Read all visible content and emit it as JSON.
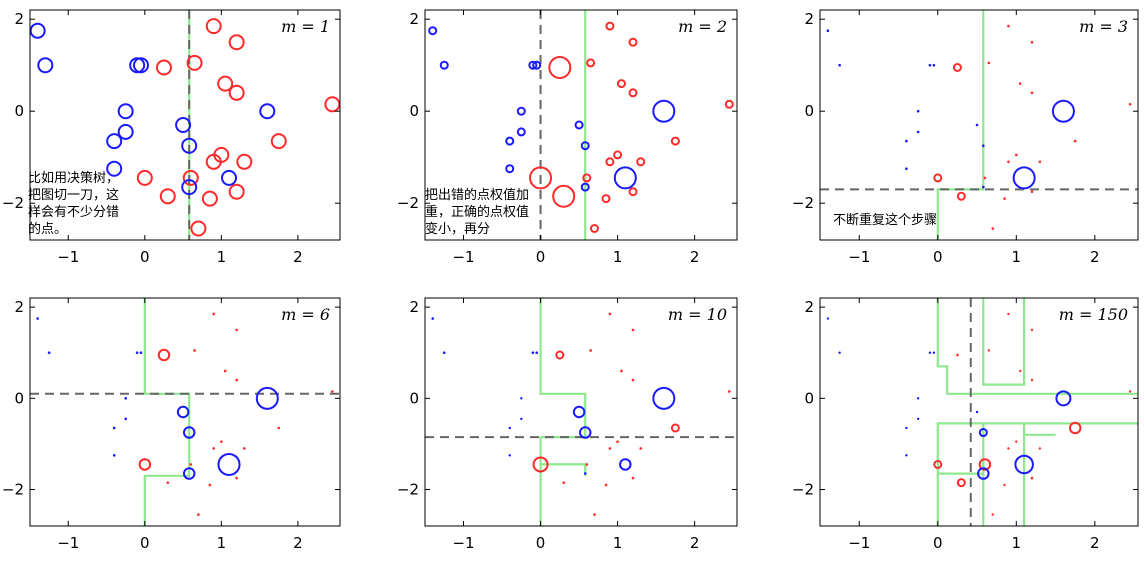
{
  "colors": {
    "class_pos": "#ff2a2a",
    "class_neg": "#1a1aff",
    "boundary": "#8ee88e",
    "weak_split": "#666666"
  },
  "notes": {
    "panel1": "比如用决策树，\n把图切一刀，这\n样会有不少分错\n的点。",
    "panel2": "把出错的点权值加\n重，正确的点权值\n变小，再分",
    "panel3": "不断重复这个步骤"
  },
  "chart_data": [
    {
      "type": "scatter",
      "title": "m = 1",
      "xlim": [
        -1.5,
        2.55
      ],
      "ylim": [
        -2.8,
        2.2
      ],
      "xticks": [
        -1,
        0,
        1,
        2
      ],
      "yticks": [
        -2,
        0,
        2
      ],
      "points_neg": [
        [
          -1.4,
          1.75,
          2
        ],
        [
          -1.3,
          1.0,
          2
        ],
        [
          -0.1,
          1.0,
          2
        ],
        [
          -0.05,
          1.0,
          2
        ],
        [
          -0.25,
          0.0,
          2
        ],
        [
          -0.25,
          -0.45,
          2
        ],
        [
          -0.4,
          -0.65,
          2
        ],
        [
          -0.4,
          -1.25,
          2
        ],
        [
          0.5,
          -0.3,
          2
        ],
        [
          0.58,
          -0.75,
          2
        ],
        [
          1.6,
          0.0,
          2
        ],
        [
          0.58,
          -1.65,
          2
        ],
        [
          1.1,
          -1.45,
          2
        ]
      ],
      "points_pos": [
        [
          0.9,
          1.85,
          2
        ],
        [
          1.2,
          1.5,
          2
        ],
        [
          0.25,
          0.95,
          2
        ],
        [
          0.65,
          1.05,
          2
        ],
        [
          1.05,
          0.6,
          2
        ],
        [
          1.2,
          0.4,
          2
        ],
        [
          2.45,
          0.15,
          2
        ],
        [
          1.75,
          -0.65,
          2
        ],
        [
          1.0,
          -0.95,
          2
        ],
        [
          0.9,
          -1.1,
          2
        ],
        [
          1.3,
          -1.1,
          2
        ],
        [
          0.0,
          -1.45,
          2
        ],
        [
          0.6,
          -1.45,
          2
        ],
        [
          1.2,
          -1.75,
          2
        ],
        [
          0.3,
          -1.85,
          2
        ],
        [
          0.85,
          -1.9,
          2
        ],
        [
          0.7,
          -2.55,
          2
        ]
      ],
      "splits": [
        {
          "orient": "v",
          "value": 0.58
        }
      ],
      "boundary": [
        [
          [
            0.58,
            2.2
          ],
          [
            0.58,
            -2.8
          ]
        ]
      ]
    },
    {
      "type": "scatter",
      "title": "m = 2",
      "xlim": [
        -1.5,
        2.55
      ],
      "ylim": [
        -2.8,
        2.2
      ],
      "xticks": [
        -1,
        0,
        1,
        2
      ],
      "yticks": [
        -2,
        0,
        2
      ],
      "points_neg": [
        [
          -1.4,
          1.75,
          1
        ],
        [
          -1.25,
          1.0,
          1
        ],
        [
          -0.1,
          1.0,
          1
        ],
        [
          -0.05,
          1.0,
          1
        ],
        [
          -0.25,
          0.0,
          1
        ],
        [
          -0.25,
          -0.45,
          1
        ],
        [
          -0.4,
          -0.65,
          1
        ],
        [
          -0.4,
          -1.25,
          1
        ],
        [
          0.5,
          -0.3,
          1
        ],
        [
          0.58,
          -0.75,
          1
        ],
        [
          1.6,
          0.0,
          3
        ],
        [
          0.58,
          -1.65,
          1
        ],
        [
          1.1,
          -1.45,
          3
        ]
      ],
      "points_pos": [
        [
          0.9,
          1.85,
          1
        ],
        [
          1.2,
          1.5,
          1
        ],
        [
          0.25,
          0.95,
          3
        ],
        [
          0.65,
          1.05,
          1
        ],
        [
          1.05,
          0.6,
          1
        ],
        [
          1.2,
          0.4,
          1
        ],
        [
          2.45,
          0.15,
          1
        ],
        [
          1.75,
          -0.65,
          1
        ],
        [
          1.0,
          -0.95,
          1
        ],
        [
          0.9,
          -1.1,
          1
        ],
        [
          1.3,
          -1.1,
          1
        ],
        [
          0.0,
          -1.45,
          3
        ],
        [
          0.6,
          -1.45,
          1
        ],
        [
          1.2,
          -1.75,
          1
        ],
        [
          0.3,
          -1.85,
          3
        ],
        [
          0.85,
          -1.9,
          1
        ],
        [
          0.7,
          -2.55,
          1
        ]
      ],
      "splits": [
        {
          "orient": "v",
          "value": 0.0
        }
      ],
      "boundary": [
        [
          [
            0.58,
            2.2
          ],
          [
            0.58,
            -2.8
          ]
        ]
      ]
    },
    {
      "type": "scatter",
      "title": "m = 3",
      "xlim": [
        -1.5,
        2.55
      ],
      "ylim": [
        -2.8,
        2.2
      ],
      "xticks": [
        -1,
        0,
        1,
        2
      ],
      "yticks": [
        -2,
        0,
        2
      ],
      "points_neg": [
        [
          -1.4,
          1.75,
          0.5
        ],
        [
          -1.25,
          1.0,
          0.5
        ],
        [
          -0.1,
          1.0,
          0.5
        ],
        [
          -0.05,
          1.0,
          0.5
        ],
        [
          -0.25,
          0.0,
          0.5
        ],
        [
          -0.25,
          -0.45,
          0.5
        ],
        [
          -0.4,
          -0.65,
          0.5
        ],
        [
          -0.4,
          -1.25,
          0.5
        ],
        [
          0.5,
          -0.3,
          0.5
        ],
        [
          0.58,
          -0.75,
          0.5
        ],
        [
          1.6,
          0.0,
          3
        ],
        [
          0.58,
          -1.65,
          0.5
        ],
        [
          1.1,
          -1.45,
          3
        ]
      ],
      "points_pos": [
        [
          0.9,
          1.85,
          0.5
        ],
        [
          1.2,
          1.5,
          0.5
        ],
        [
          0.25,
          0.95,
          1
        ],
        [
          0.65,
          1.05,
          0.5
        ],
        [
          1.05,
          0.6,
          0.5
        ],
        [
          1.2,
          0.4,
          0.5
        ],
        [
          2.45,
          0.15,
          0.5
        ],
        [
          1.75,
          -0.65,
          0.5
        ],
        [
          1.0,
          -0.95,
          0.5
        ],
        [
          0.9,
          -1.1,
          0.5
        ],
        [
          1.3,
          -1.1,
          0.5
        ],
        [
          0.0,
          -1.45,
          1
        ],
        [
          0.6,
          -1.45,
          0.5
        ],
        [
          1.2,
          -1.75,
          0.5
        ],
        [
          0.3,
          -1.85,
          1
        ],
        [
          0.85,
          -1.9,
          0.5
        ],
        [
          0.7,
          -2.55,
          0.5
        ]
      ],
      "splits": [
        {
          "orient": "h",
          "value": -1.7
        }
      ],
      "boundary": [
        [
          [
            0.58,
            2.2
          ],
          [
            0.58,
            -1.7
          ],
          [
            0.0,
            -1.7
          ],
          [
            0.0,
            -2.8
          ]
        ]
      ]
    },
    {
      "type": "scatter",
      "title": "m = 6",
      "xlim": [
        -1.5,
        2.55
      ],
      "ylim": [
        -2.8,
        2.2
      ],
      "xticks": [
        -1,
        0,
        1,
        2
      ],
      "yticks": [
        -2,
        0,
        2
      ],
      "points_neg": [
        [
          -1.4,
          1.75,
          0.5
        ],
        [
          -1.25,
          1.0,
          0.5
        ],
        [
          -0.1,
          1.0,
          0.5
        ],
        [
          -0.05,
          1.0,
          0.5
        ],
        [
          -0.25,
          0.0,
          0.5
        ],
        [
          -0.25,
          -0.45,
          0.5
        ],
        [
          -0.4,
          -0.65,
          0.5
        ],
        [
          -0.4,
          -1.25,
          0.5
        ],
        [
          0.5,
          -0.3,
          1.5
        ],
        [
          0.58,
          -0.75,
          1.5
        ],
        [
          1.6,
          0.0,
          3
        ],
        [
          0.58,
          -1.65,
          1.5
        ],
        [
          1.1,
          -1.45,
          3
        ]
      ],
      "points_pos": [
        [
          0.9,
          1.85,
          0.5
        ],
        [
          1.2,
          1.5,
          0.5
        ],
        [
          0.25,
          0.95,
          1.5
        ],
        [
          0.65,
          1.05,
          0.5
        ],
        [
          1.05,
          0.6,
          0.5
        ],
        [
          1.2,
          0.4,
          0.5
        ],
        [
          2.45,
          0.15,
          0.5
        ],
        [
          1.75,
          -0.65,
          0.5
        ],
        [
          1.0,
          -0.95,
          0.5
        ],
        [
          0.9,
          -1.1,
          0.5
        ],
        [
          1.3,
          -1.1,
          0.5
        ],
        [
          0.0,
          -1.45,
          1.5
        ],
        [
          0.6,
          -1.45,
          0.5
        ],
        [
          1.2,
          -1.75,
          0.5
        ],
        [
          0.3,
          -1.85,
          0.5
        ],
        [
          0.85,
          -1.9,
          0.5
        ],
        [
          0.7,
          -2.55,
          0.5
        ]
      ],
      "splits": [
        {
          "orient": "h",
          "value": 0.1
        }
      ],
      "boundary": [
        [
          [
            0.0,
            2.2
          ],
          [
            0.0,
            0.1
          ],
          [
            0.58,
            0.1
          ],
          [
            0.58,
            -1.7
          ],
          [
            0.0,
            -1.7
          ],
          [
            0.0,
            -2.8
          ]
        ]
      ]
    },
    {
      "type": "scatter",
      "title": "m = 10",
      "xlim": [
        -1.5,
        2.55
      ],
      "ylim": [
        -2.8,
        2.2
      ],
      "xticks": [
        -1,
        0,
        1,
        2
      ],
      "yticks": [
        -2,
        0,
        2
      ],
      "points_neg": [
        [
          -1.4,
          1.75,
          0.5
        ],
        [
          -1.25,
          1.0,
          0.5
        ],
        [
          -0.1,
          1.0,
          0.5
        ],
        [
          -0.05,
          1.0,
          0.5
        ],
        [
          -0.25,
          0.0,
          0.3
        ],
        [
          -0.25,
          -0.45,
          0.3
        ],
        [
          -0.4,
          -0.65,
          0.3
        ],
        [
          -0.4,
          -1.25,
          0.3
        ],
        [
          0.5,
          -0.3,
          1.5
        ],
        [
          0.58,
          -0.75,
          1.5
        ],
        [
          1.6,
          0.0,
          3
        ],
        [
          0.58,
          -1.65,
          0.5
        ],
        [
          1.1,
          -1.45,
          1.5
        ]
      ],
      "points_pos": [
        [
          0.9,
          1.85,
          0.5
        ],
        [
          1.2,
          1.5,
          0.5
        ],
        [
          0.25,
          0.95,
          1
        ],
        [
          0.65,
          1.05,
          0.5
        ],
        [
          1.05,
          0.6,
          0.5
        ],
        [
          1.2,
          0.4,
          0.5
        ],
        [
          2.45,
          0.15,
          0.5
        ],
        [
          1.75,
          -0.65,
          1
        ],
        [
          1.0,
          -0.95,
          0.5
        ],
        [
          0.9,
          -1.1,
          0.5
        ],
        [
          1.3,
          -1.1,
          0.5
        ],
        [
          0.0,
          -1.45,
          2
        ],
        [
          0.6,
          -1.45,
          0.5
        ],
        [
          1.2,
          -1.75,
          0.5
        ],
        [
          0.3,
          -1.85,
          0.5
        ],
        [
          0.85,
          -1.9,
          0.5
        ],
        [
          0.7,
          -2.55,
          0.5
        ]
      ],
      "splits": [
        {
          "orient": "h",
          "value": -0.85
        }
      ],
      "boundary": [
        [
          [
            0.0,
            2.2
          ],
          [
            0.0,
            0.1
          ],
          [
            0.58,
            0.1
          ],
          [
            0.58,
            -0.85
          ],
          [
            0.0,
            -0.85
          ],
          [
            0.0,
            -2.8
          ]
        ],
        [
          [
            0.0,
            -1.45
          ],
          [
            0.58,
            -1.45
          ],
          [
            0.58,
            -1.7
          ]
        ]
      ]
    },
    {
      "type": "scatter",
      "title": "m = 150",
      "xlim": [
        -1.5,
        2.55
      ],
      "ylim": [
        -2.8,
        2.2
      ],
      "xticks": [
        -1,
        0,
        1,
        2
      ],
      "yticks": [
        -2,
        0,
        2
      ],
      "points_neg": [
        [
          -1.4,
          1.75,
          0.3
        ],
        [
          -1.25,
          1.0,
          0.3
        ],
        [
          -0.1,
          1.0,
          0.3
        ],
        [
          -0.05,
          1.0,
          0.3
        ],
        [
          -0.25,
          0.0,
          0.3
        ],
        [
          -0.25,
          -0.45,
          0.3
        ],
        [
          -0.4,
          -0.65,
          0.3
        ],
        [
          -0.4,
          -1.25,
          0.3
        ],
        [
          0.5,
          -0.3,
          0.3
        ],
        [
          0.58,
          -0.75,
          1
        ],
        [
          1.6,
          0.0,
          2
        ],
        [
          0.58,
          -1.65,
          1.5
        ],
        [
          1.1,
          -1.45,
          2.5
        ]
      ],
      "points_pos": [
        [
          0.9,
          1.85,
          0.3
        ],
        [
          1.2,
          1.5,
          0.3
        ],
        [
          0.25,
          0.95,
          0.5
        ],
        [
          0.65,
          1.05,
          0.3
        ],
        [
          1.05,
          0.6,
          0.3
        ],
        [
          1.2,
          0.4,
          0.3
        ],
        [
          2.45,
          0.15,
          0.3
        ],
        [
          1.75,
          -0.65,
          1.5
        ],
        [
          1.0,
          -0.95,
          0.3
        ],
        [
          0.9,
          -1.1,
          0.3
        ],
        [
          1.3,
          -1.1,
          0.3
        ],
        [
          0.0,
          -1.45,
          1
        ],
        [
          0.6,
          -1.45,
          1.5
        ],
        [
          1.2,
          -1.75,
          0.5
        ],
        [
          0.3,
          -1.85,
          1
        ],
        [
          0.85,
          -1.9,
          0.3
        ],
        [
          0.7,
          -2.55,
          0.3
        ]
      ],
      "splits": [
        {
          "orient": "v",
          "value": 0.42
        }
      ],
      "boundary": [
        [
          [
            0.0,
            2.2
          ],
          [
            0.0,
            0.7
          ],
          [
            0.12,
            0.7
          ],
          [
            0.12,
            0.1
          ],
          [
            0.58,
            0.1
          ]
        ],
        [
          [
            0.58,
            2.2
          ],
          [
            0.58,
            0.3
          ],
          [
            1.1,
            0.3
          ],
          [
            1.1,
            2.2
          ]
        ],
        [
          [
            0.58,
            0.1
          ],
          [
            2.55,
            0.1
          ]
        ],
        [
          [
            0.0,
            -2.8
          ],
          [
            0.0,
            -0.55
          ],
          [
            0.58,
            -0.55
          ],
          [
            2.55,
            -0.55
          ]
        ],
        [
          [
            0.58,
            -0.55
          ],
          [
            0.58,
            -2.8
          ]
        ],
        [
          [
            1.1,
            -0.55
          ],
          [
            1.1,
            -2.8
          ]
        ],
        [
          [
            0.0,
            -1.65
          ],
          [
            0.58,
            -1.65
          ]
        ],
        [
          [
            1.1,
            -0.8
          ],
          [
            1.5,
            -0.8
          ]
        ]
      ]
    }
  ]
}
